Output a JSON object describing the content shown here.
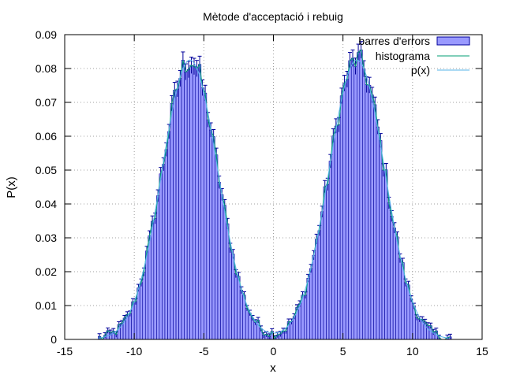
{
  "chart_data": {
    "type": "bar",
    "title": "Mètode d'acceptació i rebuig",
    "xlabel": "x",
    "ylabel": "P(x)",
    "xlim": [
      -15,
      15
    ],
    "ylim": [
      0,
      0.09
    ],
    "x_ticks": [
      "-15",
      "-10",
      "-5",
      "0",
      "5",
      "10",
      "15"
    ],
    "y_ticks": [
      "0",
      "0.01",
      "0.02",
      "0.03",
      "0.04",
      "0.05",
      "0.06",
      "0.07",
      "0.08",
      "0.09"
    ],
    "grid": true,
    "legend_position": "top-right",
    "bin_width": 0.2,
    "bins_from": -12.6,
    "series": [
      {
        "name": "barres d'errors",
        "style": "boxes with error bars",
        "color": "#9a9aff",
        "edge_color": "#00009a"
      },
      {
        "name": "histograma",
        "style": "line",
        "color": "#009e73"
      },
      {
        "name": "p(x)",
        "style": "line",
        "color": "#56b4e9"
      }
    ],
    "model": {
      "components": [
        {
          "mean": -6,
          "std": 2,
          "weight": 0.5
        },
        {
          "mean": 6,
          "std": 2,
          "weight": 0.5
        }
      ],
      "peak": 0.0825
    },
    "sample_points": [
      {
        "x": -12,
        "y": 0.002
      },
      {
        "x": -10,
        "y": 0.034
      },
      {
        "x": -8,
        "y": 0.066
      },
      {
        "x": -6,
        "y": 0.083
      },
      {
        "x": -4,
        "y": 0.065
      },
      {
        "x": -2,
        "y": 0.024
      },
      {
        "x": 0,
        "y": 0.002
      },
      {
        "x": 2,
        "y": 0.024
      },
      {
        "x": 4,
        "y": 0.064
      },
      {
        "x": 6,
        "y": 0.082
      },
      {
        "x": 8,
        "y": 0.066
      },
      {
        "x": 10,
        "y": 0.035
      },
      {
        "x": 12,
        "y": 0.003
      }
    ]
  }
}
